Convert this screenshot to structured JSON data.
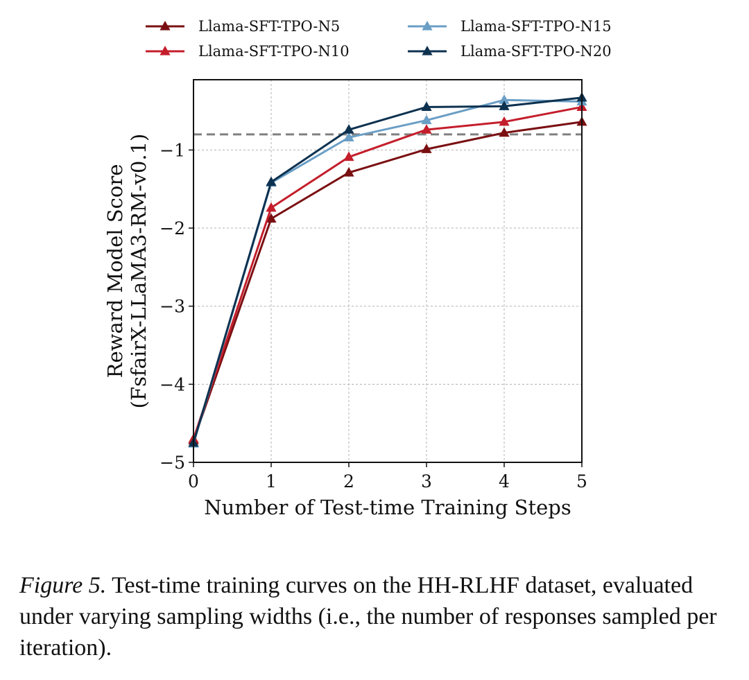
{
  "chart_data": {
    "type": "line",
    "title": "",
    "xlabel": "Number of Test-time Training Steps",
    "ylabel_line1": "Reward Model Score",
    "ylabel_line2": "(FsfairX-LLaMA3-RM-v0.1)",
    "x": [
      0,
      1,
      2,
      3,
      4,
      5
    ],
    "xlim": [
      0,
      5
    ],
    "ylim": [
      -5,
      -0.1
    ],
    "xticks": [
      "0",
      "1",
      "2",
      "3",
      "4",
      "5"
    ],
    "yticks": [
      {
        "value": -5,
        "label": "−5"
      },
      {
        "value": -4,
        "label": "−4"
      },
      {
        "value": -3,
        "label": "−3"
      },
      {
        "value": -2,
        "label": "−2"
      },
      {
        "value": -1,
        "label": "−1"
      }
    ],
    "grid": true,
    "reference_line": {
      "y": -0.8,
      "style": "dashed",
      "color": "#808080"
    },
    "legend_position": "top-outside",
    "series": [
      {
        "name": "Llama-SFT-TPO-N5",
        "color": "#7a0f12",
        "values": [
          -4.72,
          -1.88,
          -1.29,
          -0.99,
          -0.78,
          -0.64
        ]
      },
      {
        "name": "Llama-SFT-TPO-N10",
        "color": "#c41e2b",
        "values": [
          -4.7,
          -1.74,
          -1.09,
          -0.74,
          -0.64,
          -0.45
        ]
      },
      {
        "name": "Llama-SFT-TPO-N15",
        "color": "#6a9ec5",
        "values": [
          -4.76,
          -1.42,
          -0.84,
          -0.62,
          -0.36,
          -0.38
        ]
      },
      {
        "name": "Llama-SFT-TPO-N20",
        "color": "#0d3250",
        "values": [
          -4.75,
          -1.41,
          -0.74,
          -0.45,
          -0.44,
          -0.33
        ]
      }
    ]
  },
  "caption": {
    "label": "Figure 5.",
    "text": " Test-time training curves on the HH-RLHF dataset, evaluated under varying sampling widths (i.e., the number of responses sampled per iteration)."
  }
}
